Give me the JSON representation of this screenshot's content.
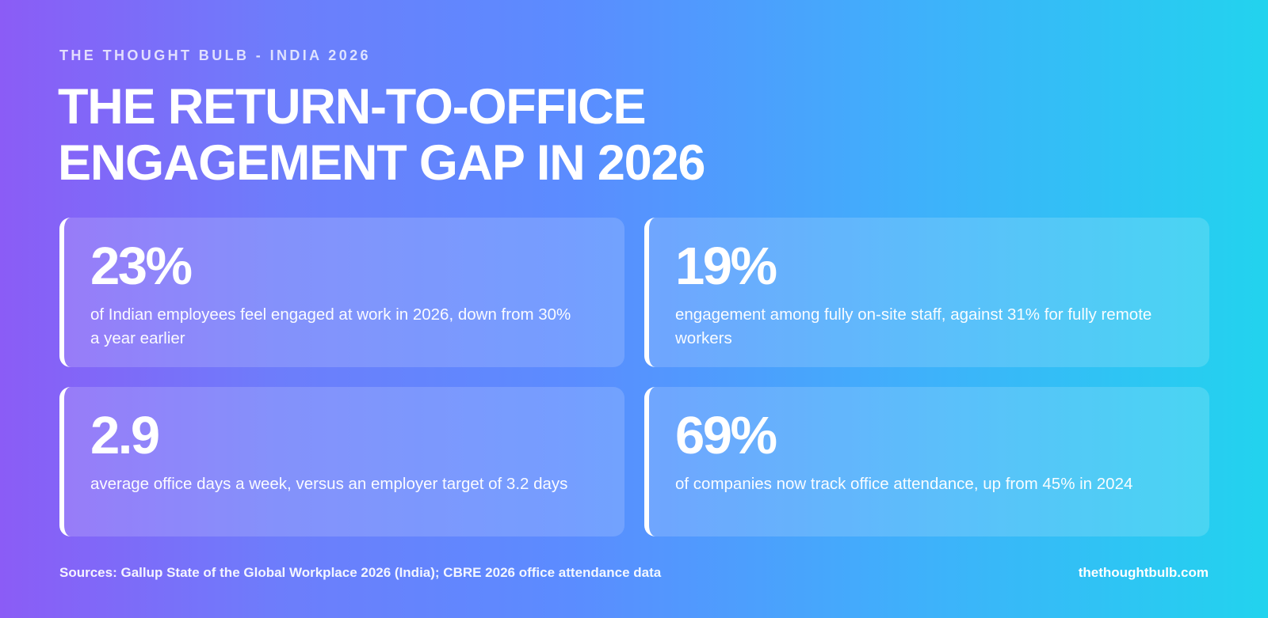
{
  "header": {
    "eyebrow": "THE THOUGHT BULB - INDIA 2026",
    "title_line1": "THE RETURN-TO-OFFICE",
    "title_line2": "ENGAGEMENT GAP IN 2026"
  },
  "stats": [
    {
      "value": "23%",
      "description": "of Indian employees feel engaged at work in 2026, down from 30% a year earlier"
    },
    {
      "value": "19%",
      "description": "engagement among fully on-site staff, against 31% for fully remote workers"
    },
    {
      "value": "2.9",
      "description": "average office days a week, versus an employer target of 3.2 days"
    },
    {
      "value": "69%",
      "description": "of companies now track office attendance, up from 45% in 2024"
    }
  ],
  "footer": {
    "sources": "Sources: Gallup State of the Global Workplace 2026 (India); CBRE 2026 office attendance data",
    "site": "thethoughtbulb.com"
  },
  "colors": {
    "gradient_start": "#8b5cf6",
    "gradient_end": "#22d3ee",
    "text": "#ffffff"
  }
}
